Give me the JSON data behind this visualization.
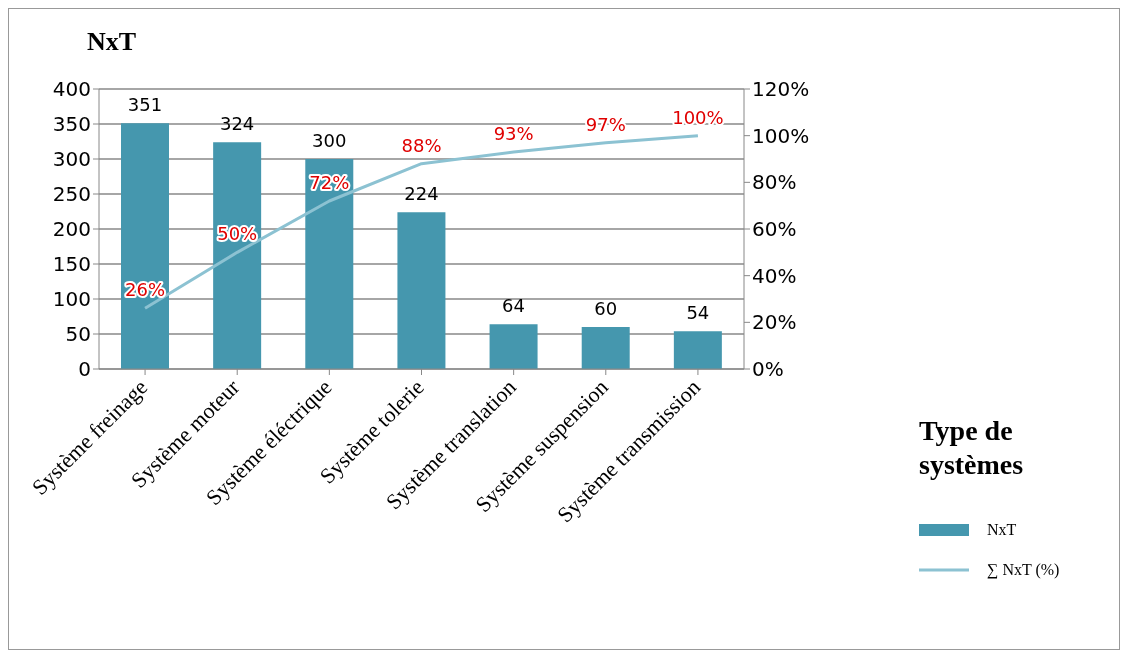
{
  "chart_data": {
    "type": "bar",
    "ylabel": "NxT",
    "xlabel": "Type de systèmes",
    "categories": [
      "Système freinage",
      "Système moteur",
      "Système éléctrique",
      "Système tolerie",
      "Système translation",
      "Système suspension",
      "Système transmission"
    ],
    "series": [
      {
        "name": "NxT",
        "color": "#4597ae",
        "values": [
          351,
          324,
          300,
          224,
          64,
          60,
          54
        ],
        "value_labels": [
          "351",
          "324",
          "300",
          "224",
          "64",
          "60",
          "54"
        ]
      },
      {
        "name": "∑ NxT  (%)",
        "type": "line",
        "axis": "y2",
        "color": "#8cc2d2",
        "values": [
          26,
          50,
          72,
          88,
          93,
          97,
          100
        ],
        "value_labels": [
          "26%",
          "50%",
          "72%",
          "88%",
          "93%",
          "97%",
          "100%"
        ]
      }
    ],
    "ylim": [
      0,
      400
    ],
    "yticks": [
      0,
      50,
      100,
      150,
      200,
      250,
      300,
      350,
      400
    ],
    "y2lim": [
      0,
      120
    ],
    "y2ticks": [
      {
        "value": 0,
        "label": "0%"
      },
      {
        "value": 20,
        "label": "20%"
      },
      {
        "value": 40,
        "label": "40%"
      },
      {
        "value": 60,
        "label": "60%"
      },
      {
        "value": 80,
        "label": "80%"
      },
      {
        "value": 100,
        "label": "100%"
      },
      {
        "value": 120,
        "label": "120%"
      }
    ],
    "grid": "y",
    "legend": "right",
    "marker": "none",
    "line_style": "solid"
  }
}
